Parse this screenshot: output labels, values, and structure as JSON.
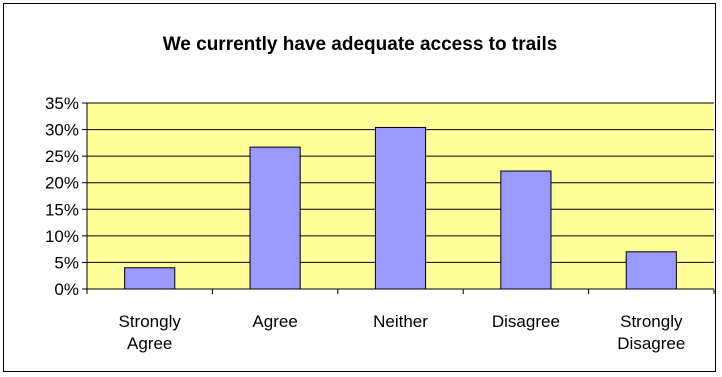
{
  "colors": {
    "plot_background": "#FFFF99",
    "bar_fill": "#9999FF",
    "bar_stroke": "#000000",
    "gridline": "#000000",
    "chart_border": "#000000"
  },
  "chart_data": {
    "type": "bar",
    "title": "We currently have adequate access to trails",
    "xlabel": "",
    "ylabel": "",
    "categories": [
      "Strongly Agree",
      "Agree",
      "Neither",
      "Disagree",
      "Strongly Disagree"
    ],
    "category_lines": [
      [
        "Strongly",
        "Agree"
      ],
      [
        "Agree"
      ],
      [
        "Neither"
      ],
      [
        "Disagree"
      ],
      [
        "Strongly",
        "Disagree"
      ]
    ],
    "values": [
      4,
      26.7,
      30.4,
      22.2,
      7
    ],
    "value_format": "percent",
    "ylim": [
      0,
      35
    ],
    "yticks": [
      0,
      5,
      10,
      15,
      20,
      25,
      30,
      35
    ],
    "ytick_labels": [
      "0%",
      "5%",
      "10%",
      "15%",
      "20%",
      "25%",
      "30%",
      "35%"
    ],
    "grid": true,
    "legend": "none"
  }
}
